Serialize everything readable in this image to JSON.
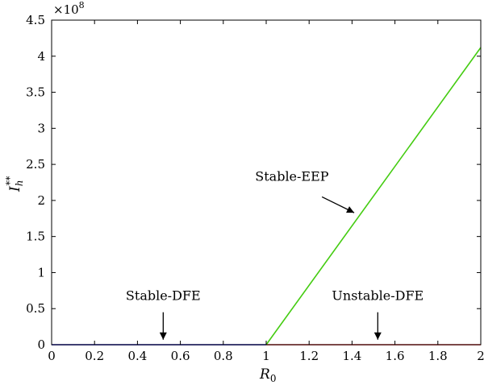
{
  "chart_data": {
    "type": "line",
    "title": "",
    "xlabel": "R",
    "xlabel_sub": "0",
    "ylabel": "I",
    "ylabel_sub": "h",
    "ylabel_sup": "**",
    "y_multiplier": "×10",
    "y_multiplier_exp": "8",
    "xlim": [
      0,
      2
    ],
    "ylim": [
      0,
      4.5
    ],
    "x_ticks": [
      0,
      0.2,
      0.4,
      0.6,
      0.8,
      1,
      1.2,
      1.4,
      1.6,
      1.8,
      2
    ],
    "x_tick_labels": [
      "0",
      "0.2",
      "0.4",
      "0.6",
      "0.8",
      "1",
      "1.2",
      "1.4",
      "1.6",
      "1.8",
      "2"
    ],
    "y_ticks": [
      0,
      0.5,
      1,
      1.5,
      2,
      2.5,
      3,
      3.5,
      4,
      4.5
    ],
    "y_tick_labels": [
      "0",
      "0.5",
      "1",
      "1.5",
      "2",
      "2.5",
      "3",
      "3.5",
      "4",
      "4.5"
    ],
    "grid": false,
    "series": [
      {
        "color": "#0000cc",
        "x": [
          0,
          1
        ],
        "y": [
          0,
          0
        ]
      },
      {
        "color": "#ee2222",
        "x": [
          1,
          2
        ],
        "y": [
          0,
          0
        ]
      },
      {
        "color": "#44cc11",
        "x": [
          1,
          2
        ],
        "y": [
          0,
          4.12
        ]
      }
    ],
    "annotations": [
      {
        "text": "Stable-DFE",
        "label_at": [
          0.52,
          0.62
        ],
        "arrow_from": [
          0.52,
          0.45
        ],
        "arrow_to": [
          0.52,
          0.07
        ]
      },
      {
        "text": "Unstable-DFE",
        "label_at": [
          1.52,
          0.62
        ],
        "arrow_from": [
          1.52,
          0.45
        ],
        "arrow_to": [
          1.52,
          0.07
        ]
      },
      {
        "text": "Stable-EEP",
        "label_at": [
          1.12,
          2.27
        ],
        "arrow_from": [
          1.26,
          2.05
        ],
        "arrow_to": [
          1.41,
          1.83
        ]
      }
    ]
  }
}
